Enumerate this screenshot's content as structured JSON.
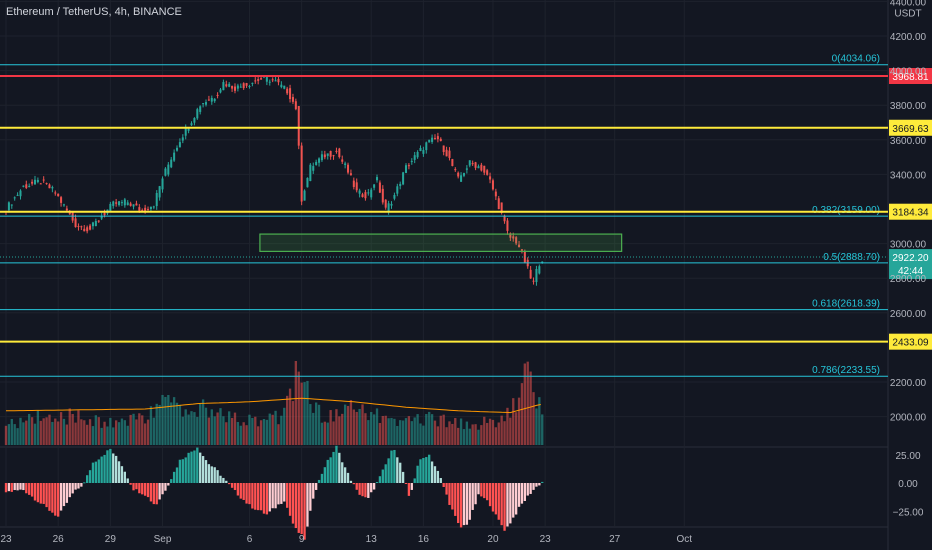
{
  "header": {
    "symbol_title": "Ethereum / TetherUS, 4h, BINANCE",
    "currency": "USDT"
  },
  "price_axis": {
    "ticks": [
      {
        "label": "4400.00",
        "value": 4400
      },
      {
        "label": "4200.00",
        "value": 4200
      },
      {
        "label": "4000.00",
        "value": 4000
      },
      {
        "label": "3800.00",
        "value": 3800
      },
      {
        "label": "3600.00",
        "value": 3600
      },
      {
        "label": "3400.00",
        "value": 3400
      },
      {
        "label": "3000.00",
        "value": 3000
      },
      {
        "label": "2800.00",
        "value": 2800
      },
      {
        "label": "2600.00",
        "value": 2600
      },
      {
        "label": "2200.00",
        "value": 2200
      },
      {
        "label": "2000.00",
        "value": 2000
      }
    ],
    "current_price": {
      "label": "2922.20",
      "value": 2922.2,
      "countdown": "42:44"
    }
  },
  "indicator_axis": {
    "ticks": [
      {
        "label": "25.00",
        "value": 25
      },
      {
        "label": "0.00",
        "value": 0
      },
      {
        "label": "−25.00",
        "value": -25
      }
    ]
  },
  "time_axis": {
    "labels": [
      {
        "label": "23",
        "day": -1
      },
      {
        "label": "26",
        "day": 2
      },
      {
        "label": "29",
        "day": 5
      },
      {
        "label": "Sep",
        "day": 8
      },
      {
        "label": "6",
        "day": 13
      },
      {
        "label": "9",
        "day": 16
      },
      {
        "label": "13",
        "day": 20
      },
      {
        "label": "16",
        "day": 23
      },
      {
        "label": "20",
        "day": 27
      },
      {
        "label": "23",
        "day": 30
      },
      {
        "label": "27",
        "day": 34
      },
      {
        "label": "Oct",
        "day": 38
      }
    ]
  },
  "horizontal_levels": [
    {
      "kind": "fib",
      "label": "0(4034.06)",
      "price": 4034.06,
      "color": "#26c6da"
    },
    {
      "kind": "resistance",
      "label": "3968.81",
      "price": 3968.81,
      "color": "#f23645"
    },
    {
      "kind": "resistance",
      "label": "3669.63",
      "price": 3669.63,
      "color": "#ffeb3b"
    },
    {
      "kind": "fib",
      "label": "0.382(3159.00)",
      "price": 3159.0,
      "color": "#26c6da"
    },
    {
      "kind": "resistance",
      "label": "3184.34",
      "price": 3184.34,
      "color": "#ffeb3b"
    },
    {
      "kind": "fib",
      "label": "0.5(2888.70)",
      "price": 2888.7,
      "color": "#26c6da"
    },
    {
      "kind": "fib",
      "label": "0.618(2618.39)",
      "price": 2618.39,
      "color": "#26c6da"
    },
    {
      "kind": "resistance",
      "label": "2433.09",
      "price": 2433.09,
      "color": "#ffeb3b"
    },
    {
      "kind": "fib",
      "label": "0.786(2233.55)",
      "price": 2233.55,
      "color": "#26c6da"
    }
  ],
  "zone": {
    "top_price": 3055,
    "bottom_price": 2955,
    "start_day": 13.6,
    "end_day": 34.4,
    "color": "#4caf50"
  },
  "colors": {
    "up": "#26a69a",
    "down": "#ef5350",
    "background": "#131722",
    "grid": "#1e222d",
    "ma": "#ff9800"
  },
  "chart_data": {
    "type": "line",
    "title": "Ethereum / TetherUS, 4h, BINANCE",
    "xlabel": "",
    "ylabel": "",
    "x_unit": "days from Aug 24",
    "price_path": [
      [
        -1,
        3200
      ],
      [
        0,
        3330
      ],
      [
        1,
        3360
      ],
      [
        1.8,
        3300
      ],
      [
        2.5,
        3190
      ],
      [
        3,
        3110
      ],
      [
        3.8,
        3080
      ],
      [
        4.5,
        3160
      ],
      [
        5.2,
        3230
      ],
      [
        6,
        3240
      ],
      [
        6.8,
        3190
      ],
      [
        7.5,
        3230
      ],
      [
        8,
        3380
      ],
      [
        8.6,
        3520
      ],
      [
        9.1,
        3620
      ],
      [
        9.6,
        3700
      ],
      [
        10.2,
        3810
      ],
      [
        11,
        3850
      ],
      [
        11.5,
        3930
      ],
      [
        12.2,
        3900
      ],
      [
        12.8,
        3920
      ],
      [
        13.6,
        3950
      ],
      [
        14.3,
        3950
      ],
      [
        15.2,
        3880
      ],
      [
        15.7,
        3780
      ],
      [
        16,
        3260
      ],
      [
        16.5,
        3440
      ],
      [
        17.3,
        3510
      ],
      [
        18,
        3530
      ],
      [
        18.6,
        3430
      ],
      [
        19.2,
        3290
      ],
      [
        19.8,
        3280
      ],
      [
        20.3,
        3380
      ],
      [
        20.8,
        3190
      ],
      [
        21.3,
        3270
      ],
      [
        22,
        3440
      ],
      [
        22.5,
        3500
      ],
      [
        23.2,
        3580
      ],
      [
        23.8,
        3610
      ],
      [
        24.4,
        3510
      ],
      [
        25,
        3370
      ],
      [
        25.7,
        3470
      ],
      [
        26.3,
        3440
      ],
      [
        26.8,
        3370
      ],
      [
        27.4,
        3200
      ],
      [
        27.9,
        3040
      ],
      [
        28.4,
        3010
      ],
      [
        28.9,
        2880
      ],
      [
        29.3,
        2760
      ],
      [
        29.6,
        2880
      ],
      [
        29.9,
        2922
      ]
    ],
    "volume": [
      [
        -1,
        180
      ],
      [
        0,
        150
      ],
      [
        1,
        220
      ],
      [
        2,
        210
      ],
      [
        3,
        200
      ],
      [
        4,
        170
      ],
      [
        5,
        160
      ],
      [
        6,
        190
      ],
      [
        7,
        200
      ],
      [
        8,
        330
      ],
      [
        9,
        240
      ],
      [
        10,
        280
      ],
      [
        11,
        220
      ],
      [
        12,
        200
      ],
      [
        13,
        180
      ],
      [
        14,
        180
      ],
      [
        15,
        220
      ],
      [
        15.9,
        620
      ],
      [
        16.5,
        280
      ],
      [
        17,
        230
      ],
      [
        18,
        200
      ],
      [
        19,
        260
      ],
      [
        20,
        220
      ],
      [
        21,
        180
      ],
      [
        22,
        170
      ],
      [
        23,
        190
      ],
      [
        24,
        180
      ],
      [
        25,
        160
      ],
      [
        26,
        150
      ],
      [
        27,
        170
      ],
      [
        28,
        220
      ],
      [
        29,
        500
      ],
      [
        29.4,
        370
      ],
      [
        30,
        220
      ]
    ],
    "volume_ma": [
      [
        -1,
        190
      ],
      [
        3,
        195
      ],
      [
        7,
        200
      ],
      [
        10,
        230
      ],
      [
        13,
        240
      ],
      [
        16,
        260
      ],
      [
        19,
        240
      ],
      [
        22,
        210
      ],
      [
        25,
        190
      ],
      [
        28,
        180
      ],
      [
        29.5,
        220
      ],
      [
        30,
        230
      ]
    ],
    "oscillator": [
      [
        -1,
        -8
      ],
      [
        0,
        -6
      ],
      [
        1,
        -18
      ],
      [
        2,
        -30
      ],
      [
        2.8,
        -10
      ],
      [
        3.5,
        0
      ],
      [
        4,
        18
      ],
      [
        5,
        30
      ],
      [
        5.7,
        15
      ],
      [
        6.3,
        -5
      ],
      [
        7,
        -10
      ],
      [
        7.6,
        -20
      ],
      [
        8.2,
        -5
      ],
      [
        9,
        20
      ],
      [
        10,
        32
      ],
      [
        10.6,
        18
      ],
      [
        11.2,
        10
      ],
      [
        12,
        -5
      ],
      [
        13,
        -20
      ],
      [
        14,
        -28
      ],
      [
        15,
        -15
      ],
      [
        15.6,
        -40
      ],
      [
        16.2,
        -50
      ],
      [
        16.7,
        -10
      ],
      [
        17.3,
        14
      ],
      [
        18,
        32
      ],
      [
        18.6,
        10
      ],
      [
        19.2,
        -8
      ],
      [
        19.8,
        -15
      ],
      [
        20.5,
        5
      ],
      [
        21.3,
        32
      ],
      [
        21.8,
        12
      ],
      [
        22.2,
        -15
      ],
      [
        22.7,
        18
      ],
      [
        23.3,
        26
      ],
      [
        23.9,
        8
      ],
      [
        24.5,
        -18
      ],
      [
        25.1,
        -40
      ],
      [
        25.6,
        -35
      ],
      [
        26.2,
        -10
      ],
      [
        26.8,
        -18
      ],
      [
        27.2,
        -30
      ],
      [
        27.7,
        -42
      ],
      [
        28.2,
        -30
      ],
      [
        28.6,
        -20
      ],
      [
        29.2,
        -8
      ],
      [
        29.6,
        -2
      ],
      [
        30,
        3
      ]
    ]
  }
}
